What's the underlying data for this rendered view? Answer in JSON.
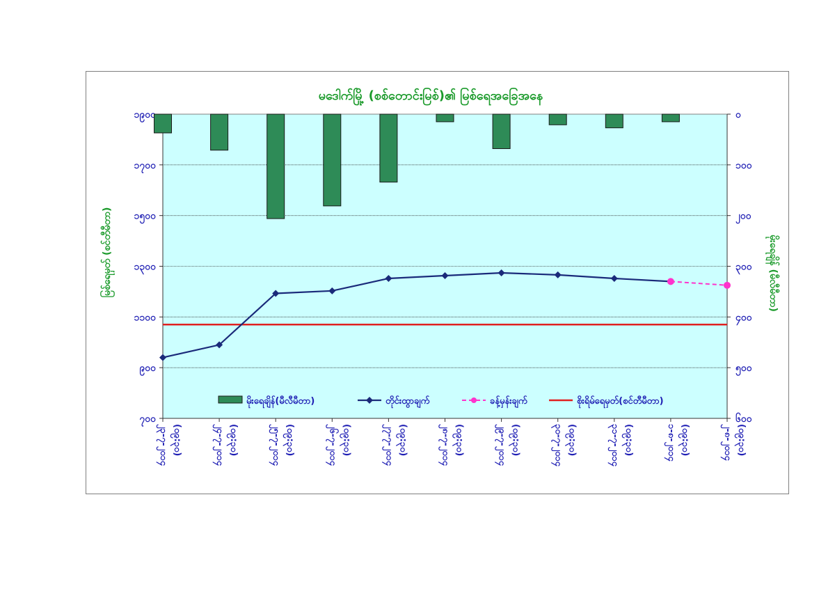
{
  "chart_data": {
    "type": "bar+line",
    "title": "မဒေါက်မြို့ (စစ်တောင်းမြစ်)၏ မြစ်ရေအခြေအနေ",
    "ylabel_left": "မြစ်ရေမှတ် (စင်တီမီတာ)",
    "ylabel_right": "မိုးရေချိန် (မီလီမီတာ)",
    "y_left_range": [
      700,
      1900
    ],
    "y_left_ticks": [
      "၁၉၀၀",
      "၁၇၀၀",
      "၁၅၀၀",
      "၁၃၀၀",
      "၁၁၀၀",
      "၉၀၀",
      "၇၀၀"
    ],
    "y_right_range": [
      0,
      600
    ],
    "y_right_ticks": [
      "၀",
      "၁၀၀",
      "၂၀၀",
      "၃၀၀",
      "၄၀၀",
      "၅၀၀",
      "၆၀၀"
    ],
    "categories": [
      {
        "date": "၂၃-၇-၂၀၁၄",
        "time": "(၀၉:၃၀)"
      },
      {
        "date": "၂၄-၇-၂၀၁၄",
        "time": "(၀၉:၃၀)"
      },
      {
        "date": "၂၅-၇-၂၀၁၄",
        "time": "(၀၉:၃၀)"
      },
      {
        "date": "၂၆-၇-၂၀၁၄",
        "time": "(၀၉:၃၀)"
      },
      {
        "date": "၂၇-၇-၂၀၁၄",
        "time": "(၀၉:၃၀)"
      },
      {
        "date": "၂၈-၇-၂၀၁၄",
        "time": "(၀၉:၃၀)"
      },
      {
        "date": "၂၉-၇-၂၀၁၄",
        "time": "(၀၉:၃၀)"
      },
      {
        "date": "၃၀-၇-၂၀၁၄",
        "time": "(၀၉:၃၀)"
      },
      {
        "date": "၃၁-၇-၂၀၁၄",
        "time": "(၀၉:၃၀)"
      },
      {
        "date": "၁-၈-၂၀၁၄",
        "time": "(၀၉:၃၀)"
      },
      {
        "date": "၂-၈-၂၀၁၄",
        "time": "(၀၉:၃၀)"
      }
    ],
    "series": [
      {
        "name": "မိုးရေချိန်(မီလီမီတာ)",
        "kind": "bar",
        "axis": "right",
        "color": "#2e8b57",
        "values": [
          37,
          71,
          206,
          181,
          134,
          15,
          68,
          21,
          27,
          15,
          null
        ]
      },
      {
        "name": "တိုင်းထွာချက်",
        "kind": "line",
        "axis": "left",
        "color": "#1a2a7a",
        "values": [
          940,
          990,
          1193,
          1203,
          1252,
          1263,
          1274,
          1266,
          1252,
          1240,
          null
        ]
      },
      {
        "name": "ခန့်မှန်းချက်",
        "kind": "line-dashed",
        "axis": "left",
        "color": "#ff33cc",
        "values": [
          null,
          null,
          null,
          null,
          null,
          null,
          null,
          null,
          null,
          1240,
          1225
        ]
      },
      {
        "name": "စိုးရိမ်ရေမှတ်(စင်တီမီတာ)",
        "kind": "hline",
        "axis": "left",
        "color": "#e02020",
        "value": 1070
      }
    ],
    "grid": true,
    "legend_position": "bottom-inside"
  }
}
